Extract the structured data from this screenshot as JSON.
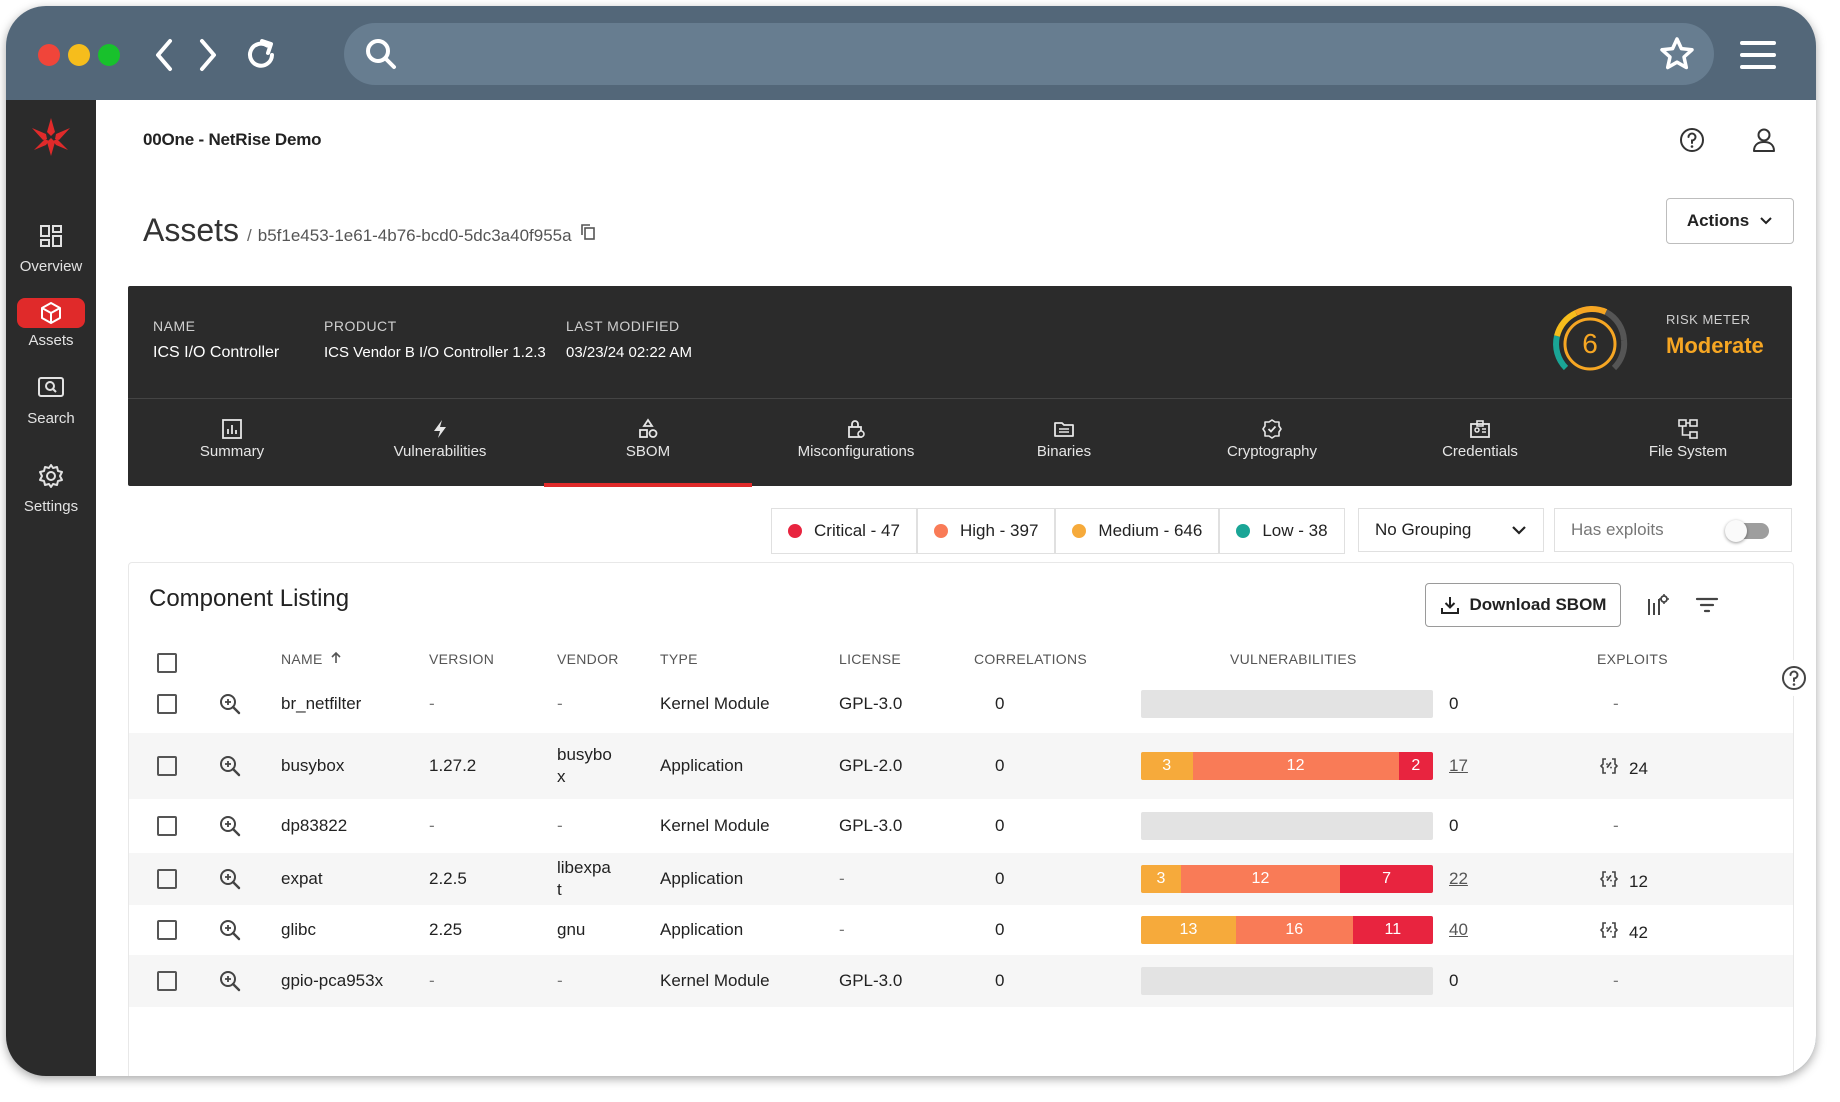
{
  "colors": {
    "accent": "#e02a2a",
    "critical": "#e8243f",
    "high": "#f97b57",
    "medium": "#f6aa3b",
    "low": "#1aa596",
    "risk": "#f6a623"
  },
  "browser": {
    "icons": [
      "back-icon",
      "forward-icon",
      "reload-icon",
      "search-icon",
      "star-icon",
      "hamburger-menu-icon"
    ]
  },
  "sidebar": {
    "logo_icon": "netrise-logo",
    "items": [
      {
        "label": "Overview",
        "icon": "dashboard-icon"
      },
      {
        "label": "Assets",
        "icon": "cube-icon",
        "active": true
      },
      {
        "label": "Search",
        "icon": "search-icon"
      },
      {
        "label": "Settings",
        "icon": "gear-icon"
      }
    ]
  },
  "header": {
    "org": "00One - NetRise Demo",
    "title": "Assets",
    "separator": "/",
    "asset_id": "b5f1e453-1e61-4b76-bcd0-5dc3a40f955a",
    "actions_label": "Actions"
  },
  "summary": {
    "name_label": "NAME",
    "name_value": "ICS I/O Controller",
    "product_label": "PRODUCT",
    "product_value": "ICS Vendor B I/O Controller 1.2.3",
    "modified_label": "LAST MODIFIED",
    "modified_value": "03/23/24 02:22 AM",
    "risk_score": "6",
    "risk_label": "RISK METER",
    "risk_value": "Moderate"
  },
  "tabs": [
    {
      "label": "Summary",
      "icon": "chart-icon"
    },
    {
      "label": "Vulnerabilities",
      "icon": "bolt-icon"
    },
    {
      "label": "SBOM",
      "icon": "shapes-icon",
      "active": true
    },
    {
      "label": "Misconfigurations",
      "icon": "lock-gear-icon"
    },
    {
      "label": "Binaries",
      "icon": "folder-icon"
    },
    {
      "label": "Cryptography",
      "icon": "badge-check-icon"
    },
    {
      "label": "Credentials",
      "icon": "id-card-icon"
    },
    {
      "label": "File System",
      "icon": "tree-icon"
    }
  ],
  "filters": {
    "critical": "Critical - 47",
    "high": "High - 397",
    "medium": "Medium - 646",
    "low": "Low - 38",
    "grouping": "No Grouping",
    "exploits_label": "Has exploits"
  },
  "listing": {
    "title": "Component Listing",
    "download_label": "Download SBOM",
    "columns": {
      "name": "NAME",
      "version": "VERSION",
      "vendor": "VENDOR",
      "type": "TYPE",
      "license": "LICENSE",
      "correlations": "CORRELATIONS",
      "vulnerabilities": "VULNERABILITIES",
      "exploits": "EXPLOITS"
    },
    "rows": [
      {
        "name": "br_netfilter",
        "version": "-",
        "vendor": "-",
        "type": "Kernel Module",
        "license": "GPL-3.0",
        "correlations": "0",
        "vuln": {
          "medium": 0,
          "high": 0,
          "critical": 0
        },
        "vuln_total": "0",
        "exploits": "-"
      },
      {
        "name": "busybox",
        "version": "1.27.2",
        "vendor": "busybox",
        "type": "Application",
        "license": "GPL-2.0",
        "correlations": "0",
        "vuln": {
          "medium": 3,
          "high": 12,
          "critical": 2
        },
        "vuln_total": "17",
        "exploits": "24"
      },
      {
        "name": "dp83822",
        "version": "-",
        "vendor": "-",
        "type": "Kernel Module",
        "license": "GPL-3.0",
        "correlations": "0",
        "vuln": {
          "medium": 0,
          "high": 0,
          "critical": 0
        },
        "vuln_total": "0",
        "exploits": "-"
      },
      {
        "name": "expat",
        "version": "2.2.5",
        "vendor": "libexpat",
        "type": "Application",
        "license": "-",
        "correlations": "0",
        "vuln": {
          "medium": 3,
          "high": 12,
          "critical": 7
        },
        "vuln_total": "22",
        "exploits": "12"
      },
      {
        "name": "glibc",
        "version": "2.25",
        "vendor": "gnu",
        "type": "Application",
        "license": "-",
        "correlations": "0",
        "vuln": {
          "medium": 13,
          "high": 16,
          "critical": 11
        },
        "vuln_total": "40",
        "exploits": "42"
      },
      {
        "name": "gpio-pca953x",
        "version": "-",
        "vendor": "-",
        "type": "Kernel Module",
        "license": "GPL-3.0",
        "correlations": "0",
        "vuln": {
          "medium": 0,
          "high": 0,
          "critical": 0
        },
        "vuln_total": "0",
        "exploits": "-"
      }
    ]
  }
}
